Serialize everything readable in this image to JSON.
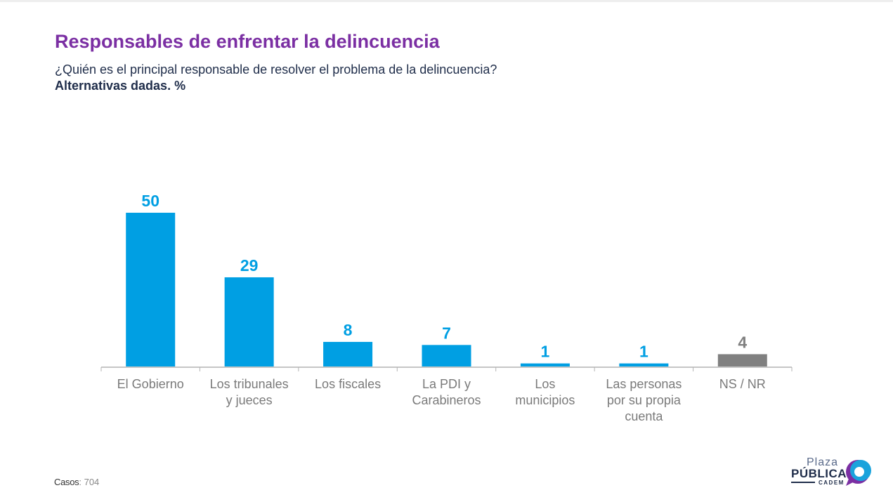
{
  "header": {
    "title": "Responsables de enfrentar la delincuencia",
    "subtitle": "¿Quién es el principal responsable de resolver el problema de la delincuencia?",
    "subtitle_bold": "Alternativas dadas. %"
  },
  "chart_data": {
    "type": "bar",
    "categories": [
      [
        "El Gobierno"
      ],
      [
        "Los tribunales",
        "y jueces"
      ],
      [
        "Los fiscales"
      ],
      [
        "La PDI y",
        "Carabineros"
      ],
      [
        "Los",
        "municipios"
      ],
      [
        "Las personas",
        "por su propia",
        "cuenta"
      ],
      [
        "NS / NR"
      ]
    ],
    "values": [
      50,
      29,
      8,
      7,
      1,
      1,
      4
    ],
    "colors": [
      "#009fe3",
      "#009fe3",
      "#009fe3",
      "#009fe3",
      "#009fe3",
      "#009fe3",
      "#808080"
    ],
    "ylim": [
      0,
      50
    ],
    "grid": false,
    "legend": "none"
  },
  "footer": {
    "casos_label": "Casos",
    "casos_value": ": 704"
  },
  "logo": {
    "plaza": "Plaza",
    "publica": "PÚBLICA",
    "cadem": "CADEM",
    "colors": {
      "purple": "#7b2fa3",
      "blue": "#1aa3dc",
      "navy": "#1f2d4a"
    }
  }
}
